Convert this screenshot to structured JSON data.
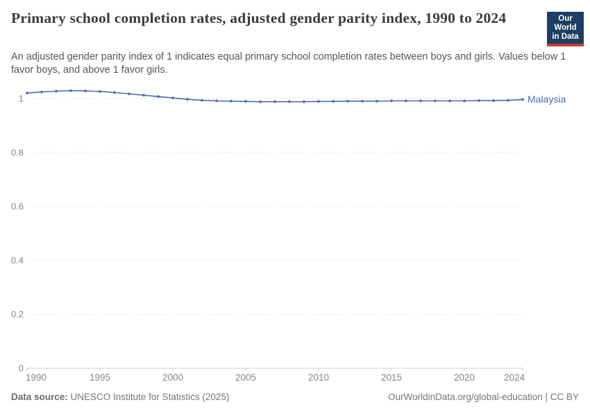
{
  "header": {
    "title": "Primary school completion rates, adjusted gender parity index, 1990 to 2024",
    "subtitle": "An adjusted gender parity index of 1 indicates equal primary school completion rates between boys and girls. Values below 1 favor boys, and above 1 favor girls.",
    "logo": {
      "line1": "Our World",
      "line2": "in Data",
      "bg_color": "#1d3d63",
      "accent_color": "#cf3a34"
    }
  },
  "footer": {
    "source_label": "Data source:",
    "source_value": " UNESCO Institute for Statistics (2025)",
    "link": "OurWorldinData.org/global-education | CC BY"
  },
  "colors": {
    "grid": "#e2e2e2",
    "axis": "#c8c8c8",
    "tick_label": "#858585",
    "title": "#3b3b3b",
    "subtitle": "#565656",
    "series_blue": "#4d6cae"
  },
  "chart_data": {
    "type": "line",
    "title": "Primary school completion rates, adjusted gender parity index, 1990 to 2024",
    "xlabel": "",
    "ylabel": "",
    "xlim": [
      1990,
      2024
    ],
    "ylim": [
      0,
      1.06
    ],
    "grid": "horizontal-dashed",
    "legend_position": "line-end-label",
    "xticks": [
      1990,
      1995,
      2000,
      2005,
      2010,
      2015,
      2020,
      2024
    ],
    "yticks": [
      0,
      0.2,
      0.4,
      0.6,
      0.8,
      1
    ],
    "x": [
      1990,
      1991,
      1992,
      1993,
      1994,
      1995,
      1996,
      1997,
      1998,
      1999,
      2000,
      2001,
      2002,
      2003,
      2004,
      2005,
      2006,
      2007,
      2008,
      2009,
      2010,
      2011,
      2012,
      2013,
      2014,
      2015,
      2016,
      2017,
      2018,
      2019,
      2020,
      2021,
      2022,
      2023,
      2024
    ],
    "series": [
      {
        "name": "Malaysia",
        "color": "#4d6cae",
        "values": [
          1.02,
          1.024,
          1.027,
          1.029,
          1.028,
          1.026,
          1.022,
          1.017,
          1.012,
          1.007,
          1.002,
          0.997,
          0.993,
          0.991,
          0.99,
          0.989,
          0.988,
          0.988,
          0.988,
          0.988,
          0.989,
          0.989,
          0.99,
          0.99,
          0.99,
          0.991,
          0.991,
          0.991,
          0.991,
          0.991,
          0.991,
          0.992,
          0.992,
          0.993,
          0.996
        ]
      }
    ]
  }
}
